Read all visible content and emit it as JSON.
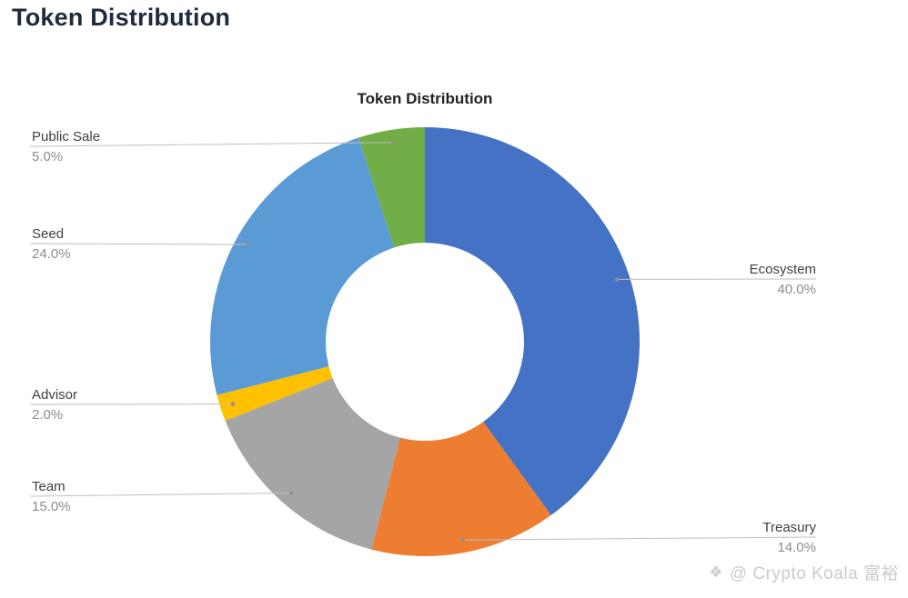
{
  "page": {
    "title": "Token Distribution"
  },
  "watermark": {
    "icon": "❖",
    "text": "@ Crypto Koala 富裕"
  },
  "chart_data": {
    "type": "pie",
    "subtype": "donut",
    "title": "Token Distribution",
    "start_angle_deg": 0,
    "direction": "clockwise",
    "inner_radius_ratio": 0.46,
    "legend": "none",
    "slices": [
      {
        "label": "Ecosystem",
        "value": 40.0,
        "pct_label": "40.0%",
        "color": "#4472C4"
      },
      {
        "label": "Treasury",
        "value": 14.0,
        "pct_label": "14.0%",
        "color": "#ED7D31"
      },
      {
        "label": "Team",
        "value": 15.0,
        "pct_label": "15.0%",
        "color": "#A5A5A5"
      },
      {
        "label": "Advisor",
        "value": 2.0,
        "pct_label": "2.0%",
        "color": "#FFC000"
      },
      {
        "label": "Seed",
        "value": 24.0,
        "pct_label": "24.0%",
        "color": "#5B9BD5"
      },
      {
        "label": "Public Sale",
        "value": 5.0,
        "pct_label": "5.0%",
        "color": "#70AD47"
      }
    ],
    "label_style": {
      "name_color": "#404040",
      "pct_color": "#8C8C8C",
      "leader_line_color": "#BFBFBF"
    }
  }
}
